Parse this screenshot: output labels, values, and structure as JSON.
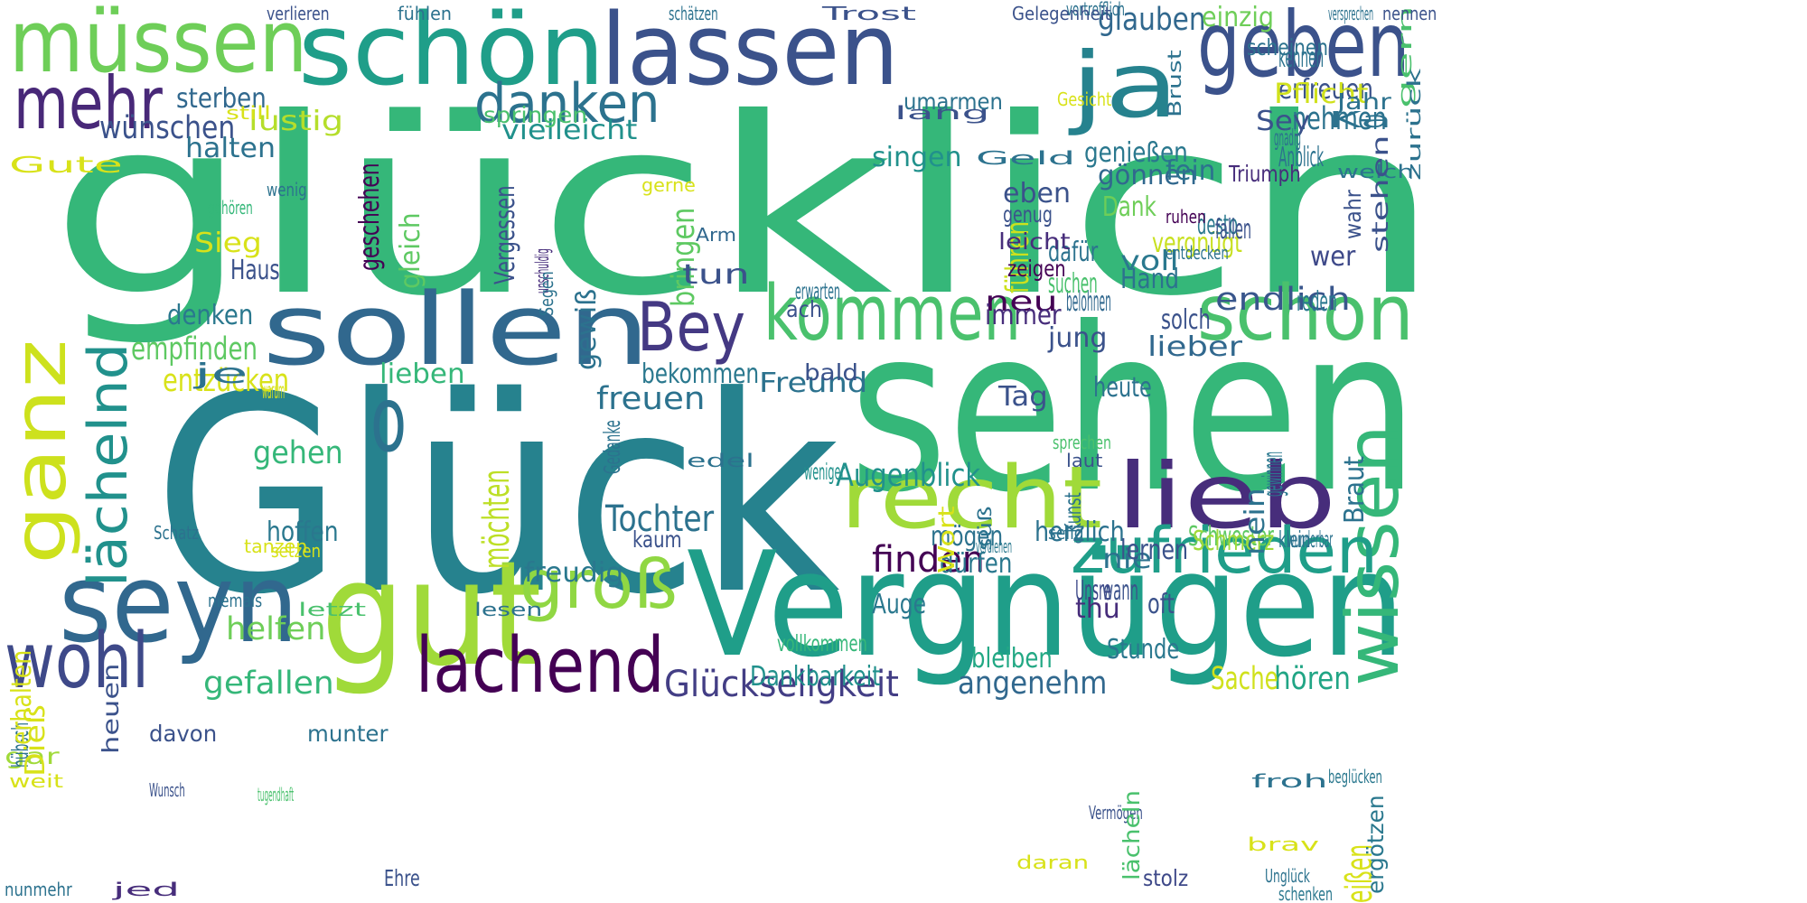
{
  "colors": {
    "background": "#ffffff"
  },
  "words": [
    {
      "text": "glücklich",
      "color": "#35b779"
    },
    {
      "text": "Glück",
      "color": "#26828e"
    },
    {
      "text": "sehen",
      "color": "#35b779"
    },
    {
      "text": "Vergnügen",
      "color": "#1f9e89"
    },
    {
      "text": "gut",
      "color": "#a0da39"
    },
    {
      "text": "lieb",
      "color": "#472d7b"
    },
    {
      "text": "recht",
      "color": "#a0da39"
    },
    {
      "text": "seyn",
      "color": "#31688e"
    },
    {
      "text": "sollen",
      "color": "#31688e"
    },
    {
      "text": "schön",
      "color": "#1f9e89"
    },
    {
      "text": "lassen",
      "color": "#3b528b"
    },
    {
      "text": "müssen",
      "color": "#6ece58"
    },
    {
      "text": "geben",
      "color": "#3b528b"
    },
    {
      "text": "ja",
      "color": "#26828e"
    },
    {
      "text": "kommen",
      "color": "#4ac16d"
    },
    {
      "text": "schon",
      "color": "#4ac16d"
    },
    {
      "text": "lachend",
      "color": "#440154"
    },
    {
      "text": "wohl",
      "color": "#3e4989"
    },
    {
      "text": "mehr",
      "color": "#482878"
    },
    {
      "text": "ganz",
      "color": "#cde11d"
    },
    {
      "text": "Bey",
      "color": "#443983"
    },
    {
      "text": "wissen",
      "color": "#35b779"
    },
    {
      "text": "zufrieden",
      "color": "#1f9e89"
    },
    {
      "text": "groß",
      "color": "#90d743"
    },
    {
      "text": "danken",
      "color": "#2c728e"
    },
    {
      "text": "lächelnd",
      "color": "#21918c"
    },
    {
      "text": "o",
      "color": "#2c728e"
    },
    {
      "text": "Glückseligkeit",
      "color": "#433e85"
    },
    {
      "text": "Tochter",
      "color": "#2c728e"
    },
    {
      "text": "angenehm",
      "color": "#31688e"
    },
    {
      "text": "hören",
      "color": "#21a585"
    },
    {
      "text": "gefallen",
      "color": "#35b779"
    },
    {
      "text": "finden",
      "color": "#440154"
    },
    {
      "text": "Augenblick",
      "color": "#21918c"
    },
    {
      "text": "wünschen",
      "color": "#3b528b"
    },
    {
      "text": "Sache",
      "color": "#d0e11c"
    },
    {
      "text": "freuen",
      "color": "#2c728e"
    },
    {
      "text": "Freund",
      "color": "#2c728e"
    },
    {
      "text": "helfen",
      "color": "#6ece58"
    },
    {
      "text": "entzücken",
      "color": "#d8e219"
    },
    {
      "text": "empfinden",
      "color": "#5ec962"
    },
    {
      "text": "gehen",
      "color": "#35b779"
    },
    {
      "text": "Dankbarkeit",
      "color": "#21918c"
    },
    {
      "text": "freudig",
      "color": "#2a788e"
    },
    {
      "text": "bleiben",
      "color": "#22a884"
    },
    {
      "text": "nehmen",
      "color": "#2c728e"
    },
    {
      "text": "glauben",
      "color": "#31688e"
    },
    {
      "text": "erfreuen",
      "color": "#3b528b"
    },
    {
      "text": "einzig",
      "color": "#6ece58"
    },
    {
      "text": "endlich",
      "color": "#39568c"
    },
    {
      "text": "gönnen",
      "color": "#31688e"
    },
    {
      "text": "umarmen",
      "color": "#2c728e"
    },
    {
      "text": "vielleicht",
      "color": "#21918c"
    },
    {
      "text": "lustig",
      "color": "#b5de2b"
    },
    {
      "text": "sterben",
      "color": "#31688e"
    },
    {
      "text": "halten",
      "color": "#2c728e"
    },
    {
      "text": "genießen",
      "color": "#2a788e"
    },
    {
      "text": "singen",
      "color": "#21918c"
    },
    {
      "text": "bringen",
      "color": "#5ec962"
    },
    {
      "text": "Vergessen",
      "color": "#3b528b"
    },
    {
      "text": "geschehen",
      "color": "#440154"
    },
    {
      "text": "gleich",
      "color": "#5ec962"
    },
    {
      "text": "denken",
      "color": "#2a788e"
    },
    {
      "text": "hoffen",
      "color": "#2a788e"
    },
    {
      "text": "bekommen",
      "color": "#2a788e"
    },
    {
      "text": "lieben",
      "color": "#35b779"
    },
    {
      "text": "heute",
      "color": "#2c728e"
    },
    {
      "text": "möchten",
      "color": "#bddf26"
    },
    {
      "text": "lieber",
      "color": "#31688e"
    },
    {
      "text": "Schwester",
      "color": "#5ec962"
    },
    {
      "text": "Schmerz",
      "color": "#a0da39"
    },
    {
      "text": "mögen",
      "color": "#2c728e"
    },
    {
      "text": "Pflicht",
      "color": "#d0e11c"
    },
    {
      "text": "Sey",
      "color": "#3b528b"
    },
    {
      "text": "Dank",
      "color": "#6ece58"
    },
    {
      "text": "vergnügt",
      "color": "#c8e020"
    },
    {
      "text": "Hand",
      "color": "#2c728e"
    },
    {
      "text": "Tag",
      "color": "#3b528b"
    },
    {
      "text": "herzlich",
      "color": "#2c728e"
    },
    {
      "text": "dürfen",
      "color": "#2a788e"
    },
    {
      "text": "Auge",
      "color": "#2a788e"
    },
    {
      "text": "Stunde",
      "color": "#2a788e"
    },
    {
      "text": "nie",
      "color": "#2c728e"
    },
    {
      "text": "wann",
      "color": "#3b528b"
    },
    {
      "text": "thu",
      "color": "#472d7b"
    },
    {
      "text": "oft",
      "color": "#3b528b"
    },
    {
      "text": "Unsre",
      "color": "#3e4989"
    },
    {
      "text": "lernen",
      "color": "#3b528b"
    },
    {
      "text": "neu",
      "color": "#440154"
    },
    {
      "text": "belohnen",
      "color": "#31688e"
    },
    {
      "text": "immer",
      "color": "#472d7b"
    },
    {
      "text": "jung",
      "color": "#3b528b"
    },
    {
      "text": "dafür",
      "color": "#2c728e"
    },
    {
      "text": "suchen",
      "color": "#4ac16d"
    },
    {
      "text": "führen",
      "color": "#cde11d"
    },
    {
      "text": "reden",
      "color": "#2a788e"
    },
    {
      "text": "wer",
      "color": "#3e4989"
    },
    {
      "text": "desto",
      "color": "#2a788e"
    },
    {
      "text": "voll",
      "color": "#2a788e"
    },
    {
      "text": "solch",
      "color": "#3b528b"
    },
    {
      "text": "fein",
      "color": "#2c728e"
    },
    {
      "text": "fallen",
      "color": "#3b528b"
    },
    {
      "text": "eben",
      "color": "#3b528b"
    },
    {
      "text": "genug",
      "color": "#3b528b"
    },
    {
      "text": "leicht",
      "color": "#472d7b"
    },
    {
      "text": "zeigen",
      "color": "#440154"
    },
    {
      "text": "tun",
      "color": "#3b528b"
    },
    {
      "text": "ach",
      "color": "#3b528b"
    },
    {
      "text": "erwarten",
      "color": "#2c728e"
    },
    {
      "text": "gewiß",
      "color": "#2c728e"
    },
    {
      "text": "Sieg",
      "color": "#d8e219"
    },
    {
      "text": "Haus",
      "color": "#3b528b"
    },
    {
      "text": "je",
      "color": "#2c728e"
    },
    {
      "text": "warum",
      "color": "#d8e219"
    },
    {
      "text": "bald",
      "color": "#3b528b"
    },
    {
      "text": "weniger",
      "color": "#21918c"
    },
    {
      "text": "vollkommen",
      "color": "#35b779"
    },
    {
      "text": "munter",
      "color": "#2c728e"
    },
    {
      "text": "davon",
      "color": "#3b528b"
    },
    {
      "text": "gar",
      "color": "#a0da39"
    },
    {
      "text": "hübsch",
      "color": "#2c728e"
    },
    {
      "text": "nunmehr",
      "color": "#2c728e"
    },
    {
      "text": "jed",
      "color": "#472d7b"
    },
    {
      "text": "Ehre",
      "color": "#3b528b"
    },
    {
      "text": "stolz",
      "color": "#3e4989"
    },
    {
      "text": "Unglück",
      "color": "#2c728e"
    },
    {
      "text": "schenken",
      "color": "#2a788e"
    },
    {
      "text": "daran",
      "color": "#d8e219"
    },
    {
      "text": "Vermögen",
      "color": "#3b528b"
    },
    {
      "text": "lächeln",
      "color": "#4ac16d"
    },
    {
      "text": "brav",
      "color": "#d8e219"
    },
    {
      "text": "heißen",
      "color": "#d8e219"
    },
    {
      "text": "ergötzen",
      "color": "#2a788e"
    },
    {
      "text": "beglücken",
      "color": "#2a788e"
    },
    {
      "text": "froh",
      "color": "#2c728e"
    },
    {
      "text": "Braut",
      "color": "#2c728e"
    },
    {
      "text": "wunderbar",
      "color": "#2c728e"
    },
    {
      "text": "klein",
      "color": "#2c728e"
    },
    {
      "text": "nein",
      "color": "#2c728e"
    },
    {
      "text": "gewinnen",
      "color": "#2a788e"
    },
    {
      "text": "sprechen",
      "color": "#4ac16d"
    },
    {
      "text": "laut",
      "color": "#3b528b"
    },
    {
      "text": "Kunst",
      "color": "#2c728e"
    },
    {
      "text": "selig",
      "color": "#2c728e"
    },
    {
      "text": "Wort",
      "color": "#d8e219"
    },
    {
      "text": "süß",
      "color": "#2c728e"
    },
    {
      "text": "verdienen",
      "color": "#2a788e"
    },
    {
      "text": "edel",
      "color": "#2c728e"
    },
    {
      "text": "kaum",
      "color": "#3b528b"
    },
    {
      "text": "Gedanke",
      "color": "#2c728e"
    },
    {
      "text": "lesen",
      "color": "#2c728e"
    },
    {
      "text": "letzt",
      "color": "#4ac16d"
    },
    {
      "text": "niemals",
      "color": "#2c728e"
    },
    {
      "text": "tanzen",
      "color": "#d8e219"
    },
    {
      "text": "setzen",
      "color": "#d8e219"
    },
    {
      "text": "Schatz",
      "color": "#2c728e"
    },
    {
      "text": "heuen",
      "color": "#3b528b"
    },
    {
      "text": "erhalten",
      "color": "#d8e219"
    },
    {
      "text": "tugendhaft",
      "color": "#4ac16d"
    },
    {
      "text": "Wunsch",
      "color": "#3b528b"
    },
    {
      "text": "weit",
      "color": "#d8e219"
    },
    {
      "text": "Dieß",
      "color": "#d8e219"
    },
    {
      "text": "wenig",
      "color": "#2c728e"
    },
    {
      "text": "gehören",
      "color": "#35b779"
    },
    {
      "text": "Gute",
      "color": "#d8e219"
    },
    {
      "text": "still",
      "color": "#d8e219"
    },
    {
      "text": "springen",
      "color": "#4ac16d"
    },
    {
      "text": "gerne",
      "color": "#d8e219"
    },
    {
      "text": "unschuldig",
      "color": "#472d7b"
    },
    {
      "text": "Segen",
      "color": "#2c728e"
    },
    {
      "text": "Arm",
      "color": "#31688e"
    },
    {
      "text": "Geld",
      "color": "#2c728e"
    },
    {
      "text": "lang",
      "color": "#3b528b"
    },
    {
      "text": "Gesicht",
      "color": "#d8e219"
    },
    {
      "text": "entdecken",
      "color": "#2c728e"
    },
    {
      "text": "ruhen",
      "color": "#440154"
    },
    {
      "text": "Triumph",
      "color": "#472d7b"
    },
    {
      "text": "Brust",
      "color": "#2c728e"
    },
    {
      "text": "Anblick",
      "color": "#2c728e"
    },
    {
      "text": "gnädig",
      "color": "#2c728e"
    },
    {
      "text": "wahr",
      "color": "#3b528b"
    },
    {
      "text": "Ka",
      "color": "#2c728e"
    },
    {
      "text": "Jahr",
      "color": "#2c728e"
    },
    {
      "text": "welch",
      "color": "#2c728e"
    },
    {
      "text": "kennen",
      "color": "#2c728e"
    },
    {
      "text": "scheinen",
      "color": "#2c728e"
    },
    {
      "text": "gern",
      "color": "#4ac16d"
    },
    {
      "text": "stehen",
      "color": "#3b528b"
    },
    {
      "text": "zurück",
      "color": "#2c728e"
    },
    {
      "text": "vortrefflich",
      "color": "#2c728e"
    },
    {
      "text": "Gelegenheit",
      "color": "#3b528b"
    },
    {
      "text": "versprechen",
      "color": "#2c728e"
    },
    {
      "text": "nennen",
      "color": "#3b528b"
    },
    {
      "text": "schätzen",
      "color": "#2c728e"
    },
    {
      "text": "Trost",
      "color": "#3b528b"
    },
    {
      "text": "verlieren",
      "color": "#3b528b"
    },
    {
      "text": "fühlen",
      "color": "#2c728e"
    },
    {
      "text": "allerliebst",
      "color": "#d8e219"
    },
    {
      "text": "dadurch",
      "color": "#d8e219"
    },
    {
      "text": "kömmen",
      "color": "#d8e219"
    }
  ]
}
